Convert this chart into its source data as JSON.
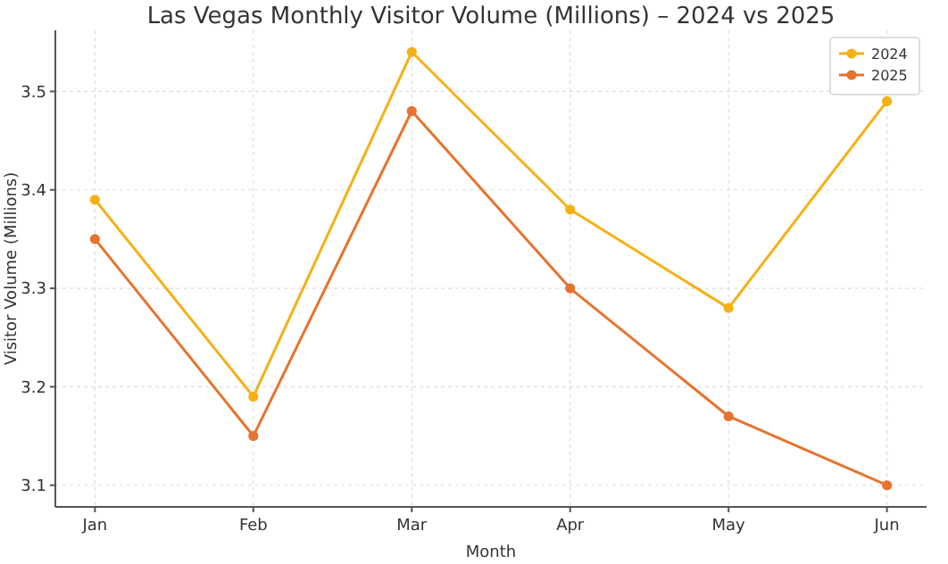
{
  "chart_data": {
    "type": "line",
    "title": "Las Vegas Monthly Visitor Volume (Millions) – 2024 vs 2025",
    "xlabel": "Month",
    "ylabel": "Visitor Volume (Millions)",
    "categories": [
      "Jan",
      "Feb",
      "Mar",
      "Apr",
      "May",
      "Jun"
    ],
    "series": [
      {
        "name": "2024",
        "color": "#f5b016",
        "values": [
          3.39,
          3.19,
          3.54,
          3.38,
          3.28,
          3.49
        ]
      },
      {
        "name": "2025",
        "color": "#e6732e",
        "values": [
          3.35,
          3.15,
          3.48,
          3.3,
          3.17,
          3.1
        ]
      }
    ],
    "ylim": [
      3.078,
      3.562
    ],
    "yticks": [
      3.1,
      3.2,
      3.3,
      3.4,
      3.5
    ],
    "grid": true,
    "legend": "top right",
    "marker": "circle",
    "line_style": "solid"
  }
}
